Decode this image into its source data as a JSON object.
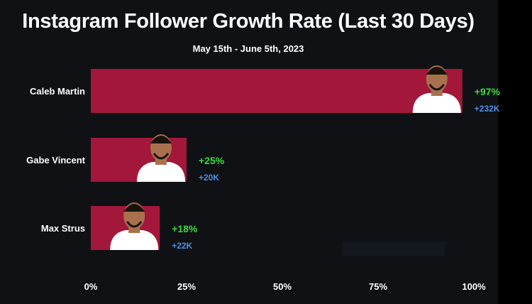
{
  "chart_data": {
    "type": "bar",
    "orientation": "horizontal",
    "title": "Instagram Follower Growth Rate (Last 30 Days)",
    "subtitle": "May 15th - June 5th, 2023",
    "categories": [
      "Caleb Martin",
      "Gabe Vincent",
      "Max Strus"
    ],
    "values": [
      97,
      25,
      18
    ],
    "value_labels": [
      "+97%",
      "+25%",
      "+18%"
    ],
    "follower_labels": [
      "+232K",
      "+20K",
      "+22K"
    ],
    "xlim": [
      0,
      100
    ],
    "xticks": [
      "0%",
      "25%",
      "50%",
      "75%",
      "100%"
    ],
    "xlabel": "",
    "ylabel": "",
    "grid": false,
    "legend": "none"
  },
  "colors": {
    "background": "#0f1115",
    "bar": "#a3173a",
    "percent_label": "#3ddc3d",
    "follower_label": "#4d8fe6",
    "text": "#ffffff",
    "jersey": "#ffffff",
    "skin": "#a8714d"
  }
}
